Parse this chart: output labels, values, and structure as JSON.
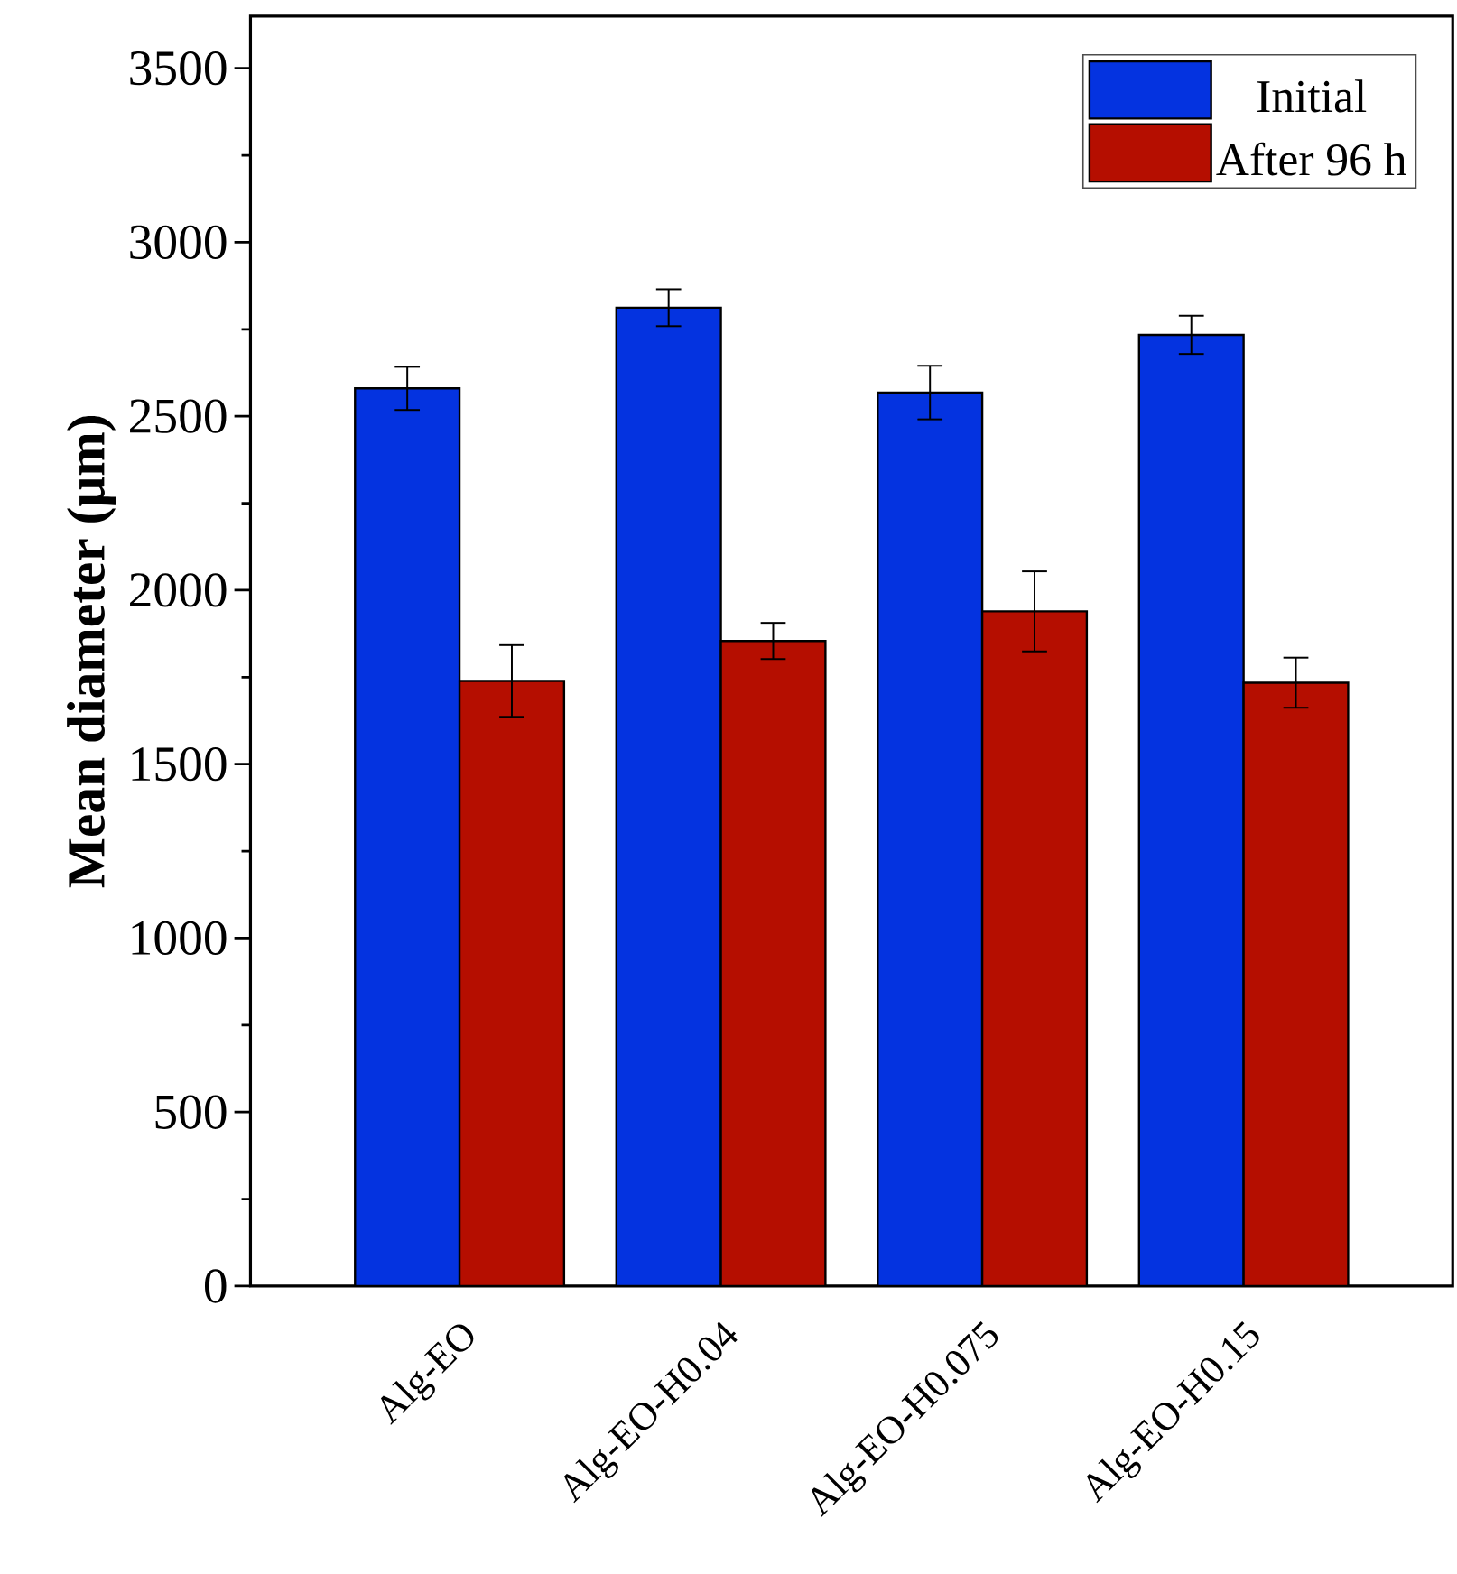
{
  "chart_data": {
    "type": "bar",
    "ylabel": "Mean diameter (μm)",
    "categories": [
      "Alg-EO",
      "Alg-EO-H0.04",
      "Alg-EO-H0.075",
      "Alg-EO-H0.15"
    ],
    "series": [
      {
        "name": "Initial",
        "color": "#0433e0",
        "values": [
          2580,
          2812,
          2568,
          2734
        ],
        "errors": [
          62,
          53,
          77,
          55
        ]
      },
      {
        "name": "After 96 h",
        "color": "#b50e00",
        "values": [
          1739,
          1854,
          1939,
          1734
        ],
        "errors": [
          103,
          52,
          115,
          72
        ]
      }
    ],
    "ylim": [
      0,
      3650
    ],
    "yticks": [
      0,
      500,
      1000,
      1500,
      2000,
      2500,
      3000,
      3500
    ],
    "legend": "top right",
    "grid": false
  }
}
